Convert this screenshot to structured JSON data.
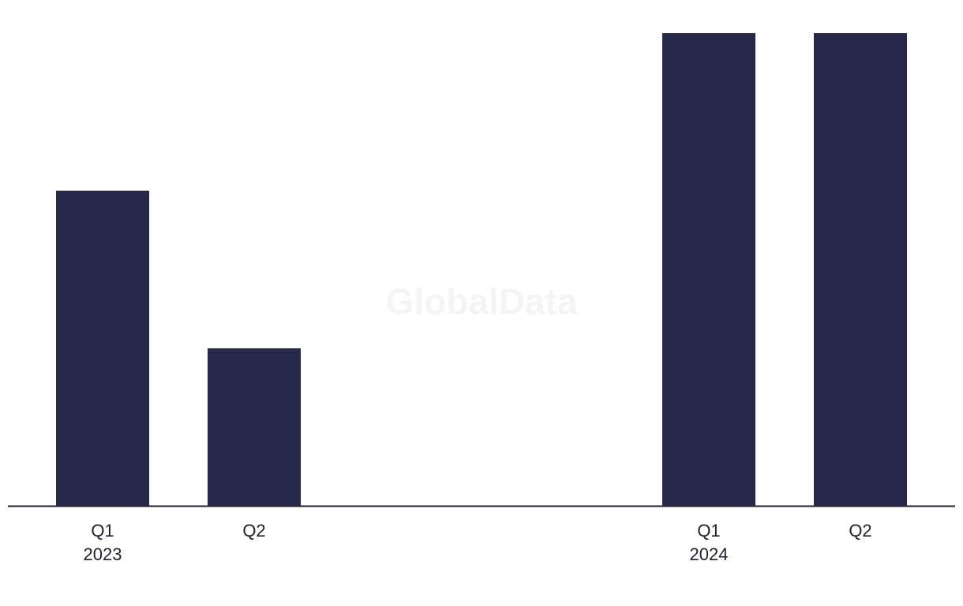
{
  "chart_data": {
    "type": "bar",
    "watermark": "GlobalData",
    "categories": [
      "Q1",
      "Q2",
      null,
      null,
      "Q1",
      "Q2"
    ],
    "group_labels": [
      "2023",
      null,
      null,
      null,
      "2024",
      null
    ],
    "values": [
      2,
      1,
      null,
      null,
      3,
      3
    ],
    "color": "#282948",
    "ylim": [
      0,
      3
    ]
  }
}
